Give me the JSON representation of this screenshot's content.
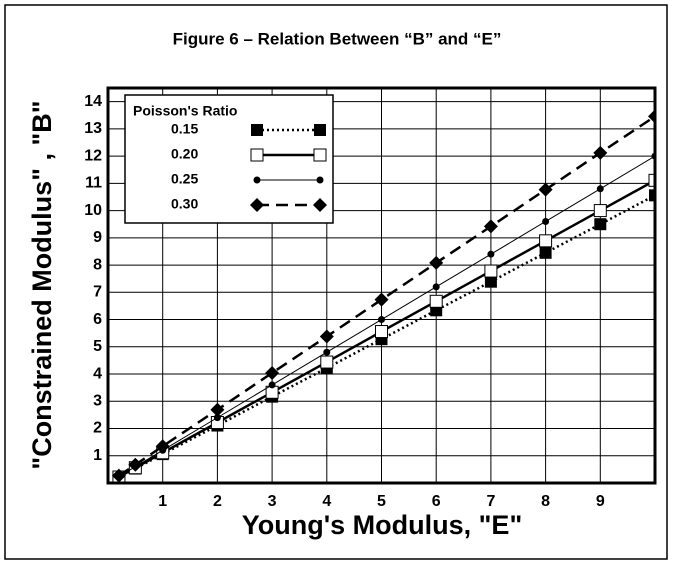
{
  "chart_data": {
    "type": "line",
    "title": "Figure 6 – Relation Between “B” and “E”",
    "x_label": "Young's Modulus, \"E\"",
    "y_label": "\"Constrained Modulus\" , \"B\"",
    "legend_title": "Poisson's Ratio",
    "legend_position": "upper left",
    "grid": true,
    "x": [
      0.2,
      0.5,
      1,
      2,
      3,
      4,
      5,
      6,
      7,
      8,
      9,
      10
    ],
    "xlim": [
      0,
      10
    ],
    "xticks": [
      1,
      2,
      3,
      4,
      5,
      6,
      7,
      8,
      9
    ],
    "ylim": [
      0,
      14.5
    ],
    "yticks": [
      1,
      2,
      3,
      4,
      5,
      6,
      7,
      8,
      9,
      10,
      11,
      12,
      13,
      14
    ],
    "series": [
      {
        "name": "0.15",
        "color": "#000000",
        "line_style": "dotted",
        "marker": "filled-square",
        "values": [
          0.21,
          0.53,
          1.06,
          2.11,
          3.17,
          4.22,
          5.28,
          6.34,
          7.39,
          8.45,
          9.5,
          10.56
        ]
      },
      {
        "name": "0.20",
        "color": "#000000",
        "line_style": "solid-thick",
        "marker": "open-square",
        "values": [
          0.22,
          0.56,
          1.11,
          2.22,
          3.33,
          4.44,
          5.56,
          6.67,
          7.78,
          8.89,
          10,
          11.11
        ]
      },
      {
        "name": "0.25",
        "color": "#000000",
        "line_style": "solid-thin",
        "marker": "circle",
        "values": [
          0.24,
          0.6,
          1.2,
          2.4,
          3.6,
          4.8,
          6,
          7.2,
          8.4,
          9.6,
          10.8,
          12
        ]
      },
      {
        "name": "0.30",
        "color": "#000000",
        "line_style": "dashed",
        "marker": "diamond",
        "values": [
          0.27,
          0.67,
          1.35,
          2.69,
          4.04,
          5.38,
          6.73,
          8.08,
          9.42,
          10.77,
          12.12,
          13.46
        ]
      }
    ]
  }
}
